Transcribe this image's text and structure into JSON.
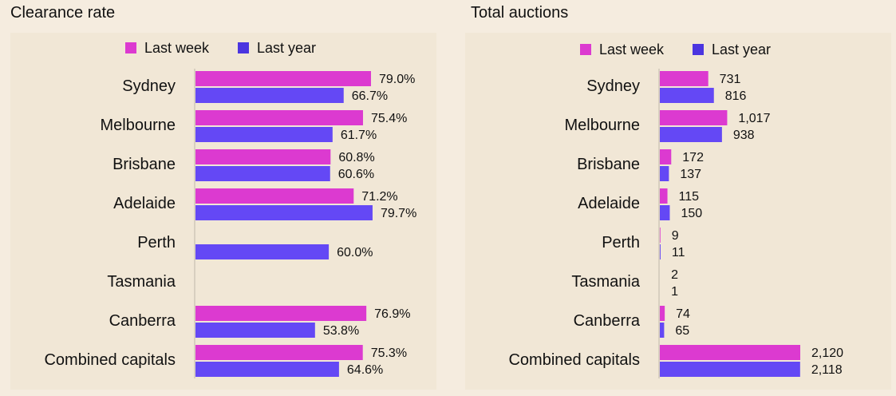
{
  "colors": {
    "last_week": "#dc3ad0",
    "last_year": "#6448f5",
    "legend_last_year": "#4b35e0"
  },
  "chart_data": [
    {
      "type": "bar",
      "title": "Clearance rate",
      "orientation": "horizontal",
      "legend": "top-center",
      "categories": [
        "Sydney",
        "Melbourne",
        "Brisbane",
        "Adelaide",
        "Perth",
        "Tasmania",
        "Canberra",
        "Combined capitals"
      ],
      "series": [
        {
          "name": "Last week",
          "values": [
            79.0,
            75.4,
            60.8,
            71.2,
            null,
            null,
            76.9,
            75.3
          ],
          "labels": [
            "79.0%",
            "75.4%",
            "60.8%",
            "71.2%",
            "",
            "",
            "76.9%",
            "75.3%"
          ]
        },
        {
          "name": "Last year",
          "values": [
            66.7,
            61.7,
            60.6,
            79.7,
            60.0,
            null,
            53.8,
            64.6
          ],
          "labels": [
            "66.7%",
            "61.7%",
            "60.6%",
            "79.7%",
            "60.0%",
            "",
            "53.8%",
            "64.6%"
          ]
        }
      ],
      "grid": false
    },
    {
      "type": "bar",
      "title": "Total auctions",
      "orientation": "horizontal",
      "legend": "top-center",
      "categories": [
        "Sydney",
        "Melbourne",
        "Brisbane",
        "Adelaide",
        "Perth",
        "Tasmania",
        "Canberra",
        "Combined capitals"
      ],
      "series": [
        {
          "name": "Last week",
          "values": [
            731,
            1017,
            172,
            115,
            9,
            2,
            74,
            2120
          ],
          "labels": [
            "731",
            "1,017",
            "172",
            "115",
            "9",
            "2",
            "74",
            "2,120"
          ]
        },
        {
          "name": "Last year",
          "values": [
            816,
            938,
            137,
            150,
            11,
            1,
            65,
            2118
          ],
          "labels": [
            "816",
            "938",
            "137",
            "150",
            "11",
            "1",
            "65",
            "2,118"
          ]
        }
      ],
      "grid": false
    }
  ]
}
